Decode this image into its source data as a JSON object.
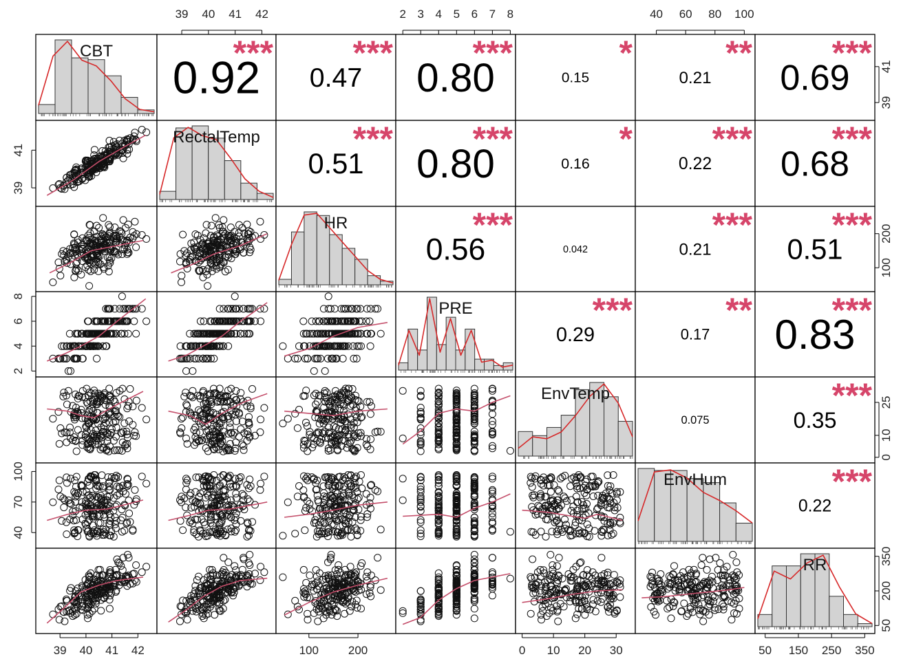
{
  "chart_data": {
    "type": "scatter",
    "title": "",
    "variables": [
      "CBT",
      "RectalTemp",
      "HR",
      "PRE",
      "EnvTemp",
      "EnvHum",
      "RR"
    ],
    "ranges": [
      [
        38.2,
        42.6
      ],
      [
        38.2,
        42.4
      ],
      [
        40,
        270
      ],
      [
        1.8,
        8.1
      ],
      [
        -1,
        35
      ],
      [
        28,
        105
      ],
      [
        30,
        370
      ]
    ],
    "axis_ticks": {
      "top": {
        "RectalTemp": [
          39,
          40,
          41,
          42
        ],
        "PRE": [
          2,
          3,
          4,
          5,
          6,
          7,
          8
        ],
        "EnvHum": [
          40,
          60,
          80,
          100
        ]
      },
      "left": {
        "RectalTemp": [
          39,
          41
        ],
        "PRE": [
          2,
          4,
          6,
          8
        ],
        "EnvHum": [
          40,
          70,
          100
        ]
      },
      "right": {
        "CBT": [
          39,
          41
        ],
        "HR": [
          100,
          200
        ],
        "EnvTemp": [
          0,
          10,
          25
        ],
        "RR": [
          50,
          200,
          350
        ]
      },
      "bottom": {
        "CBT": [
          39,
          40,
          41,
          42
        ],
        "HR": [
          100,
          200
        ],
        "EnvTemp": [
          0,
          10,
          20,
          30
        ],
        "RR": [
          50,
          150,
          250,
          350
        ]
      }
    },
    "correlations": [
      {
        "row": 0,
        "col": 1,
        "value": "0.92",
        "stars": "***"
      },
      {
        "row": 0,
        "col": 2,
        "value": "0.47",
        "stars": "***"
      },
      {
        "row": 0,
        "col": 3,
        "value": "0.80",
        "stars": "***"
      },
      {
        "row": 0,
        "col": 4,
        "value": "0.15",
        "stars": "*"
      },
      {
        "row": 0,
        "col": 5,
        "value": "0.21",
        "stars": "**"
      },
      {
        "row": 0,
        "col": 6,
        "value": "0.69",
        "stars": "***"
      },
      {
        "row": 1,
        "col": 2,
        "value": "0.51",
        "stars": "***"
      },
      {
        "row": 1,
        "col": 3,
        "value": "0.80",
        "stars": "***"
      },
      {
        "row": 1,
        "col": 4,
        "value": "0.16",
        "stars": "*"
      },
      {
        "row": 1,
        "col": 5,
        "value": "0.22",
        "stars": "***"
      },
      {
        "row": 1,
        "col": 6,
        "value": "0.68",
        "stars": "***"
      },
      {
        "row": 2,
        "col": 3,
        "value": "0.56",
        "stars": "***"
      },
      {
        "row": 2,
        "col": 4,
        "value": "0.042",
        "stars": ""
      },
      {
        "row": 2,
        "col": 5,
        "value": "0.21",
        "stars": "***"
      },
      {
        "row": 2,
        "col": 6,
        "value": "0.51",
        "stars": "***"
      },
      {
        "row": 3,
        "col": 4,
        "value": "0.29",
        "stars": "***"
      },
      {
        "row": 3,
        "col": 5,
        "value": "0.17",
        "stars": "**"
      },
      {
        "row": 3,
        "col": 6,
        "value": "0.83",
        "stars": "***"
      },
      {
        "row": 4,
        "col": 5,
        "value": "0.075",
        "stars": ""
      },
      {
        "row": 4,
        "col": 6,
        "value": "0.35",
        "stars": "***"
      },
      {
        "row": 5,
        "col": 6,
        "value": "0.22",
        "stars": "***"
      }
    ],
    "histograms": [
      {
        "var": "CBT",
        "bin_edges": [
          38.5,
          39,
          39.5,
          40,
          40.5,
          41,
          41.5,
          42
        ],
        "counts": [
          10,
          82,
          62,
          60,
          42,
          18,
          4
        ],
        "density": [
          10,
          70,
          88,
          65,
          58,
          40,
          18,
          5,
          2
        ]
      },
      {
        "var": "RectalTemp",
        "bin_edges": [
          38.5,
          39,
          39.5,
          40,
          40.5,
          41,
          41.5,
          42
        ],
        "counts": [
          8,
          70,
          72,
          60,
          38,
          16,
          6
        ],
        "density": [
          5,
          60,
          70,
          62,
          58,
          40,
          20,
          8,
          2
        ]
      },
      {
        "var": "HR",
        "bin_edges": [
          50,
          75,
          100,
          125,
          150,
          175,
          200,
          225,
          250,
          275
        ],
        "counts": [
          6,
          58,
          80,
          76,
          55,
          40,
          28,
          10,
          4
        ],
        "density": [
          5,
          45,
          78,
          80,
          64,
          48,
          32,
          16,
          6,
          2
        ]
      },
      {
        "var": "PRE",
        "bin_edges": [
          2,
          2.5,
          3,
          3.5,
          4,
          4.5,
          5,
          5.5,
          6,
          6.5,
          7,
          7.5,
          8
        ],
        "counts": [
          8,
          45,
          22,
          80,
          28,
          58,
          22,
          45,
          12,
          12,
          5,
          8
        ],
        "density": [
          5,
          40,
          15,
          72,
          18,
          52,
          15,
          40,
          8,
          10,
          3,
          5
        ]
      },
      {
        "var": "EnvTemp",
        "bin_edges": [
          0,
          4,
          8,
          12,
          16,
          20,
          24,
          28,
          32
        ],
        "counts": [
          24,
          20,
          28,
          40,
          65,
          72,
          58,
          34
        ],
        "density": [
          8,
          20,
          18,
          25,
          42,
          62,
          75,
          55,
          20
        ]
      },
      {
        "var": "EnvHum",
        "bin_edges": [
          30,
          40,
          50,
          60,
          70,
          80,
          90,
          100
        ],
        "counts": [
          72,
          70,
          70,
          62,
          58,
          38,
          18
        ],
        "density": [
          20,
          68,
          70,
          62,
          48,
          40,
          30,
          18
        ]
      },
      {
        "var": "RR",
        "bin_edges": [
          40,
          80,
          120,
          160,
          200,
          240,
          280,
          320,
          360
        ],
        "counts": [
          8,
          40,
          40,
          48,
          48,
          20,
          8,
          2
        ],
        "density": [
          5,
          35,
          30,
          40,
          45,
          25,
          8,
          2
        ]
      }
    ],
    "loess": [
      {
        "row": 1,
        "col": 0,
        "x": [
          38.5,
          39.5,
          40.5,
          41.5,
          42.3
        ],
        "y": [
          38.6,
          39.4,
          40.4,
          41.2,
          41.8
        ]
      },
      {
        "row": 2,
        "col": 0,
        "x": [
          38.6,
          39.4,
          40.2,
          41.2,
          42.2
        ],
        "y": [
          85,
          115,
          150,
          165,
          180
        ]
      },
      {
        "row": 2,
        "col": 1,
        "x": [
          38.6,
          39.4,
          40.2,
          41.2,
          42.2
        ],
        "y": [
          85,
          110,
          140,
          165,
          200
        ]
      },
      {
        "row": 3,
        "col": 0,
        "x": [
          38.5,
          39.2,
          39.8,
          40.5,
          41.2,
          42.3
        ],
        "y": [
          2.8,
          3.4,
          4.0,
          4.8,
          6.0,
          7.8
        ]
      },
      {
        "row": 3,
        "col": 1,
        "x": [
          38.5,
          39.2,
          39.8,
          40.5,
          41.2,
          42.2
        ],
        "y": [
          2.8,
          3.3,
          4.0,
          4.8,
          6.0,
          7.5
        ]
      },
      {
        "row": 3,
        "col": 2,
        "x": [
          50,
          100,
          150,
          200,
          260
        ],
        "y": [
          3.2,
          3.8,
          4.8,
          5.5,
          5.9
        ]
      },
      {
        "row": 4,
        "col": 0,
        "x": [
          38.5,
          39.3,
          39.8,
          40.3,
          41.2,
          42.2
        ],
        "y": [
          22,
          21,
          19,
          18,
          24,
          30
        ]
      },
      {
        "row": 4,
        "col": 1,
        "x": [
          38.5,
          39.3,
          39.9,
          40.5,
          41.3,
          42.2
        ],
        "y": [
          21,
          19,
          15,
          20,
          25,
          29
        ]
      },
      {
        "row": 4,
        "col": 2,
        "x": [
          50,
          100,
          150,
          200,
          260
        ],
        "y": [
          21,
          20,
          19,
          21,
          22
        ]
      },
      {
        "row": 4,
        "col": 3,
        "x": [
          2,
          3,
          4,
          5,
          6,
          7,
          8
        ],
        "y": [
          6,
          12,
          20,
          22,
          21,
          25,
          28
        ]
      },
      {
        "row": 5,
        "col": 0,
        "x": [
          38.5,
          39.3,
          40,
          40.8,
          41.6,
          42.2
        ],
        "y": [
          52,
          58,
          62,
          63,
          68,
          72
        ]
      },
      {
        "row": 5,
        "col": 1,
        "x": [
          38.5,
          39.3,
          40,
          40.8,
          41.6,
          42.2
        ],
        "y": [
          52,
          57,
          62,
          63,
          67,
          70
        ]
      },
      {
        "row": 5,
        "col": 2,
        "x": [
          50,
          100,
          150,
          200,
          260
        ],
        "y": [
          55,
          58,
          62,
          67,
          70
        ]
      },
      {
        "row": 5,
        "col": 3,
        "x": [
          2,
          3,
          4,
          5,
          6,
          7,
          8
        ],
        "y": [
          56,
          57,
          58,
          55,
          64,
          70,
          78
        ]
      },
      {
        "row": 5,
        "col": 4,
        "x": [
          0,
          8,
          16,
          20,
          24,
          28,
          32
        ],
        "y": [
          62,
          60,
          56,
          54,
          58,
          55,
          52
        ]
      },
      {
        "row": 6,
        "col": 0,
        "x": [
          38.5,
          39.2,
          39.8,
          40.5,
          41.2,
          42.2
        ],
        "y": [
          60,
          130,
          195,
          225,
          245,
          260
        ]
      },
      {
        "row": 6,
        "col": 1,
        "x": [
          38.5,
          39.2,
          39.8,
          40.5,
          41.2,
          42.2
        ],
        "y": [
          65,
          120,
          175,
          220,
          245,
          255
        ]
      },
      {
        "row": 6,
        "col": 2,
        "x": [
          50,
          100,
          150,
          200,
          260
        ],
        "y": [
          95,
          150,
          195,
          225,
          255
        ]
      },
      {
        "row": 6,
        "col": 3,
        "x": [
          2,
          3,
          4,
          5,
          6,
          7,
          8
        ],
        "y": [
          55,
          85,
          160,
          210,
          245,
          260,
          275
        ]
      },
      {
        "row": 6,
        "col": 4,
        "x": [
          0,
          8,
          16,
          24,
          32
        ],
        "y": [
          150,
          165,
          185,
          200,
          205
        ]
      },
      {
        "row": 6,
        "col": 5,
        "x": [
          30,
          45,
          60,
          75,
          90,
          100
        ],
        "y": [
          170,
          175,
          185,
          195,
          205,
          215
        ]
      }
    ],
    "xlabel": "",
    "ylabel": "",
    "grid": false,
    "legend": "none"
  }
}
